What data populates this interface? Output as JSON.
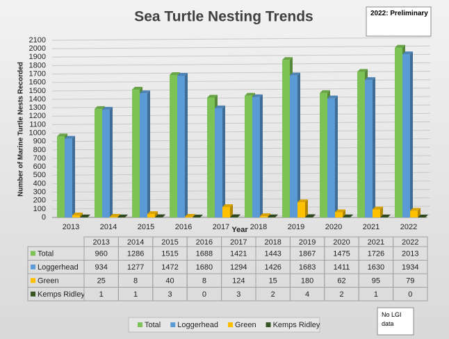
{
  "chart_data": {
    "type": "bar",
    "title": "Sea Turtle Nesting Trends",
    "annotations": [
      "2022: Preliminary",
      "No LGI data"
    ],
    "x_label": "Year",
    "y_label": "Number of Marine Turtle Nests Recorded",
    "categories": [
      "2013",
      "2014",
      "2015",
      "2016",
      "2017",
      "2018",
      "2019",
      "2020",
      "2021",
      "2022"
    ],
    "series": [
      {
        "name": "Total",
        "color": "#7cc254",
        "values": [
          960,
          1286,
          1515,
          1688,
          1421,
          1443,
          1867,
          1475,
          1726,
          2013
        ]
      },
      {
        "name": "Loggerhead",
        "color": "#5b9bd5",
        "values": [
          934,
          1277,
          1472,
          1680,
          1294,
          1426,
          1683,
          1411,
          1630,
          1934
        ]
      },
      {
        "name": "Green",
        "color": "#ffc000",
        "values": [
          25,
          8,
          40,
          8,
          124,
          15,
          180,
          62,
          95,
          79
        ]
      },
      {
        "name": "Kemps Ridley",
        "color": "#375623",
        "values": [
          1,
          1,
          3,
          0,
          3,
          2,
          4,
          2,
          1,
          0
        ]
      }
    ],
    "ylim": [
      0,
      2100
    ],
    "yticks": [
      0,
      100,
      200,
      300,
      400,
      500,
      600,
      700,
      800,
      900,
      1000,
      1100,
      1200,
      1300,
      1400,
      1500,
      1600,
      1700,
      1800,
      1900,
      2000,
      2100
    ],
    "grid": true,
    "legend": "bottom",
    "data_table": true
  }
}
